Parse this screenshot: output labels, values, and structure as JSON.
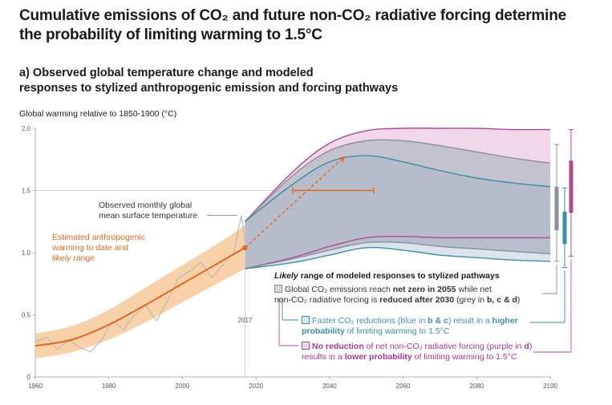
{
  "title_line1": "Cumulative emissions of CO₂ and future non-CO₂ radiative forcing determine",
  "title_line2": "the probability of limiting warming to 1.5°C",
  "subtitle_line1": "a) Observed global temperature change and modeled",
  "subtitle_line2": "responses to stylized anthropogenic emission and forcing pathways",
  "colors": {
    "grey": "#9a9ea8",
    "blue": "#3a8fa8",
    "purple": "#b04a96",
    "orange": "#e06a1e",
    "orange_band": "#f7c99a",
    "observed": "#b5b5b5"
  },
  "annotations": {
    "observed": [
      "Observed monthly global",
      "mean surface temperature"
    ],
    "estimated_line1": "Estimated anthropogenic",
    "estimated_line2": "warming to date and",
    "estimated_likely": "likely",
    "estimated_range": " range",
    "likely_heading_italic": "Likely",
    "likely_heading_rest": " range of modeled responses to stylized pathways",
    "grey_a": "Global CO₂ emissions reach ",
    "grey_b": "net zero in 2055",
    "grey_c": " while net",
    "grey_d": "non-CO₂ radiative forcing is ",
    "grey_e": "reduced after 2030",
    "grey_f": " (grey in ",
    "grey_g": "b, c & d",
    "grey_h": ")",
    "blue_a": "Faster CO₂ reductions (blue in ",
    "blue_b": "b & c",
    "blue_c": ") result in a ",
    "blue_d": "higher",
    "blue_e": "probability",
    "blue_f": " of limiting warming to 1.5°C",
    "purple_a": "No reduction",
    "purple_b": " of net non-CO₂ radiative forcing (purple in ",
    "purple_c": "d",
    "purple_d": ")",
    "purple_e": "results in a ",
    "purple_f": "lower probability",
    "purple_g": " of limiting warming to 1.5°C"
  },
  "chart_data": {
    "type": "area",
    "title": "",
    "ylabel": "Global warming relative to 1850-1900 (°C)",
    "xlim": [
      1960,
      2100
    ],
    "ylim": [
      0,
      2.0
    ],
    "x_ticks": [
      1960,
      1980,
      2000,
      2020,
      2040,
      2060,
      2080,
      2100
    ],
    "y_ticks": [
      0,
      0.5,
      1.0,
      1.5,
      2.0
    ],
    "y_tick_labels": [
      "0",
      "0.5",
      "1.0",
      "1.5",
      "2.0"
    ],
    "marker_year_label": "2017",
    "reference_line_y": 1.5,
    "anthropogenic_warming": {
      "x": [
        1960,
        1970,
        1980,
        1990,
        2000,
        2010,
        2017
      ],
      "y": [
        0.25,
        0.3,
        0.42,
        0.58,
        0.75,
        0.92,
        1.04
      ],
      "band_low": [
        0.15,
        0.2,
        0.3,
        0.44,
        0.6,
        0.76,
        0.87
      ],
      "band_high": [
        0.35,
        0.41,
        0.54,
        0.72,
        0.9,
        1.08,
        1.22
      ]
    },
    "observed_monthly": {
      "x": [
        1960,
        1963,
        1966,
        1969,
        1972,
        1975,
        1978,
        1981,
        1984,
        1987,
        1990,
        1993,
        1996,
        1999,
        2002,
        2005,
        2008,
        2011,
        2014,
        2016,
        2017
      ],
      "y": [
        0.28,
        0.32,
        0.22,
        0.3,
        0.24,
        0.2,
        0.3,
        0.45,
        0.38,
        0.5,
        0.58,
        0.45,
        0.62,
        0.8,
        0.85,
        0.92,
        0.8,
        0.9,
        1.0,
        1.3,
        1.1
      ]
    },
    "central_estimate_2040": {
      "x_low": 2030,
      "x_high": 2052,
      "y": 1.5,
      "arrow_from": [
        2017,
        1.04
      ],
      "arrow_to": [
        2044,
        1.77
      ]
    },
    "pathways": [
      {
        "name": "Grey",
        "x": [
          2017,
          2030,
          2040,
          2050,
          2060,
          2070,
          2080,
          2090,
          2100
        ],
        "upper": [
          1.25,
          1.62,
          1.82,
          1.9,
          1.9,
          1.86,
          1.81,
          1.76,
          1.72
        ],
        "lower": [
          0.87,
          0.95,
          1.02,
          1.08,
          1.08,
          1.05,
          1.03,
          1.01,
          0.99
        ]
      },
      {
        "name": "Blue",
        "x": [
          2017,
          2030,
          2040,
          2050,
          2060,
          2070,
          2080,
          2090,
          2100
        ],
        "upper": [
          1.25,
          1.55,
          1.73,
          1.78,
          1.73,
          1.66,
          1.6,
          1.56,
          1.53
        ],
        "lower": [
          0.87,
          0.92,
          0.98,
          1.04,
          1.02,
          0.98,
          0.96,
          0.94,
          0.93
        ]
      },
      {
        "name": "Purple",
        "x": [
          2017,
          2030,
          2040,
          2050,
          2060,
          2070,
          2080,
          2090,
          2100
        ],
        "upper": [
          1.25,
          1.65,
          1.88,
          1.98,
          2.0,
          2.0,
          2.0,
          1.99,
          1.99
        ],
        "lower": [
          0.87,
          0.96,
          1.05,
          1.12,
          1.13,
          1.12,
          1.12,
          1.12,
          1.12
        ]
      }
    ],
    "range_bars_2100": [
      {
        "name": "Grey",
        "min": 0.93,
        "max": 1.87,
        "box_low": 1.18,
        "box_high": 1.53
      },
      {
        "name": "Blue",
        "min": 0.88,
        "max": 1.52,
        "box_low": 1.07,
        "box_high": 1.33
      },
      {
        "name": "Purple",
        "min": 0.97,
        "max": 1.99,
        "box_low": 1.32,
        "box_high": 1.74
      }
    ]
  }
}
